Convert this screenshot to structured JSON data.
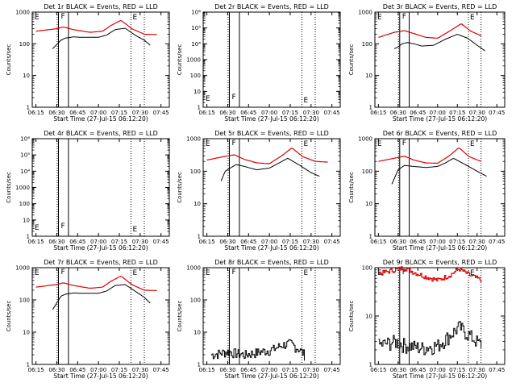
{
  "chart_data": [
    {
      "panel": "Det 1",
      "title": "Det 1r BLACK = Events, RED = LLD",
      "type": "line",
      "ylog": true,
      "ylim": [
        1,
        1000
      ],
      "yticks": [
        "1",
        "10",
        "100",
        "1000"
      ],
      "ylabel": "Counts/sec",
      "xticks": [
        "06:15",
        "06:30",
        "06:45",
        "07:00",
        "07:15",
        "07:30",
        "07:45"
      ],
      "xlabel": "Start Time (27-Jul-15 06:12:20)",
      "flags": [
        "E",
        "F",
        "E"
      ],
      "attenuator": true,
      "series": [
        {
          "name": "Events",
          "color": "#000000",
          "values": [],
          "x": []
        },
        {
          "name": "LLD",
          "color": "#dd0000",
          "values": [],
          "x": []
        }
      ],
      "red_curve": [
        [
          6.25,
          250
        ],
        [
          6.5,
          300
        ],
        [
          6.58,
          340
        ],
        [
          6.7,
          280
        ],
        [
          6.9,
          230
        ],
        [
          7.05,
          250
        ],
        [
          7.15,
          380
        ],
        [
          7.27,
          550
        ],
        [
          7.4,
          300
        ],
        [
          7.55,
          200
        ],
        [
          7.7,
          195
        ]
      ],
      "black_curve": [
        [
          6.45,
          70
        ],
        [
          6.55,
          130
        ],
        [
          6.6,
          150
        ],
        [
          6.7,
          165
        ],
        [
          6.8,
          160
        ],
        [
          7.0,
          160
        ],
        [
          7.1,
          190
        ],
        [
          7.2,
          280
        ],
        [
          7.32,
          310
        ],
        [
          7.45,
          180
        ],
        [
          7.55,
          130
        ],
        [
          7.62,
          90
        ]
      ]
    },
    {
      "panel": "Det 2",
      "title": "Det 2r BLACK = Events, RED = LLD",
      "type": "line",
      "ylog": true,
      "ylim": [
        1,
        1000000
      ],
      "yticks": [
        "1",
        "10",
        "100",
        "1000",
        "10⁴",
        "10⁵",
        "10⁶"
      ],
      "ylabel": "Counts/sec",
      "xticks": [
        "06:15",
        "06:30",
        "06:45",
        "07:00",
        "07:15",
        "07:30",
        "07:45"
      ],
      "xlabel": "Start Time (27-Jul-15 06:12:20)",
      "flags": [
        "E",
        "F",
        "E"
      ],
      "attenuator": false,
      "red_curve": [],
      "black_curve": []
    },
    {
      "panel": "Det 3",
      "title": "Det 3r BLACK = Events, RED = LLD",
      "type": "line",
      "ylog": true,
      "ylim": [
        1,
        1000
      ],
      "yticks": [
        "1",
        "10",
        "100",
        "1000"
      ],
      "ylabel": "Counts/sec",
      "xticks": [
        "06:15",
        "06:30",
        "06:45",
        "07:00",
        "07:15",
        "07:30",
        "07:45"
      ],
      "xlabel": "Start Time (27-Jul-15 06:12:20)",
      "flags": [
        "E",
        "F",
        "E"
      ],
      "attenuator": true,
      "red_curve": [
        [
          6.25,
          160
        ],
        [
          6.45,
          230
        ],
        [
          6.58,
          260
        ],
        [
          6.7,
          210
        ],
        [
          6.85,
          160
        ],
        [
          7.0,
          150
        ],
        [
          7.15,
          250
        ],
        [
          7.3,
          430
        ],
        [
          7.42,
          250
        ],
        [
          7.55,
          180
        ]
      ],
      "black_curve": [
        [
          6.45,
          70
        ],
        [
          6.5,
          80
        ],
        [
          6.55,
          100
        ],
        [
          6.62,
          110
        ],
        [
          6.7,
          100
        ],
        [
          6.8,
          85
        ],
        [
          6.95,
          90
        ],
        [
          7.1,
          140
        ],
        [
          7.25,
          200
        ],
        [
          7.38,
          150
        ],
        [
          7.5,
          90
        ],
        [
          7.6,
          60
        ]
      ]
    },
    {
      "panel": "Det 4",
      "title": "Det 4r BLACK = Events, RED = LLD",
      "type": "line",
      "ylog": true,
      "ylim": [
        1,
        1000000
      ],
      "yticks": [
        "1",
        "10",
        "100",
        "1000",
        "10⁴",
        "10⁵",
        "10⁶"
      ],
      "ylabel": "Counts/sec",
      "xticks": [
        "06:15",
        "06:30",
        "06:45",
        "07:00",
        "07:15",
        "07:30",
        "07:45"
      ],
      "xlabel": "Start Time (27-Jul-15 06:12:20)",
      "flags": [
        "E",
        "F",
        "E"
      ],
      "attenuator": false,
      "red_curve": [],
      "black_curve": []
    },
    {
      "panel": "Det 5",
      "title": "Det 5r BLACK = Events, RED = LLD",
      "type": "line",
      "ylog": true,
      "ylim": [
        1,
        1000
      ],
      "yticks": [
        "1",
        "10",
        "100",
        "1000"
      ],
      "ylabel": "Counts/sec",
      "xticks": [
        "06:15",
        "06:30",
        "06:45",
        "07:00",
        "07:15",
        "07:30",
        "07:45"
      ],
      "xlabel": "Start Time (27-Jul-15 06:12:20)",
      "flags": [
        "E",
        "F",
        "E"
      ],
      "attenuator": true,
      "red_curve": [
        [
          6.25,
          220
        ],
        [
          6.45,
          280
        ],
        [
          6.58,
          320
        ],
        [
          6.7,
          230
        ],
        [
          6.85,
          180
        ],
        [
          7.0,
          170
        ],
        [
          7.15,
          300
        ],
        [
          7.27,
          520
        ],
        [
          7.4,
          280
        ],
        [
          7.55,
          200
        ],
        [
          7.7,
          190
        ]
      ],
      "black_curve": [
        [
          6.42,
          50
        ],
        [
          6.47,
          100
        ],
        [
          6.52,
          120
        ],
        [
          6.6,
          160
        ],
        [
          6.7,
          140
        ],
        [
          6.85,
          110
        ],
        [
          7.0,
          125
        ],
        [
          7.1,
          170
        ],
        [
          7.22,
          250
        ],
        [
          7.35,
          160
        ],
        [
          7.5,
          90
        ],
        [
          7.6,
          70
        ]
      ]
    },
    {
      "panel": "Det 6",
      "title": "Det 6r BLACK = Events, RED = LLD",
      "type": "line",
      "ylog": true,
      "ylim": [
        1,
        1000
      ],
      "yticks": [
        "1",
        "10",
        "100",
        "1000"
      ],
      "ylabel": "Counts/sec",
      "xticks": [
        "06:15",
        "06:30",
        "06:45",
        "07:00",
        "07:15",
        "07:30",
        "07:45"
      ],
      "xlabel": "Start Time (27-Jul-15 06:12:20)",
      "flags": [
        "E",
        "F",
        "E"
      ],
      "attenuator": true,
      "red_curve": [
        [
          6.25,
          200
        ],
        [
          6.45,
          250
        ],
        [
          6.58,
          290
        ],
        [
          6.7,
          220
        ],
        [
          6.85,
          180
        ],
        [
          7.0,
          175
        ],
        [
          7.15,
          300
        ],
        [
          7.27,
          530
        ],
        [
          7.4,
          280
        ],
        [
          7.55,
          200
        ]
      ],
      "black_curve": [
        [
          6.42,
          40
        ],
        [
          6.5,
          110
        ],
        [
          6.58,
          150
        ],
        [
          6.7,
          140
        ],
        [
          6.85,
          130
        ],
        [
          7.0,
          140
        ],
        [
          7.1,
          180
        ],
        [
          7.2,
          250
        ],
        [
          7.35,
          160
        ],
        [
          7.5,
          100
        ],
        [
          7.62,
          70
        ]
      ]
    },
    {
      "panel": "Det 7",
      "title": "Det 7r BLACK = Events, RED = LLD",
      "type": "line",
      "ylog": true,
      "ylim": [
        1,
        1000
      ],
      "yticks": [
        "1",
        "10",
        "100",
        "1000"
      ],
      "ylabel": "Counts/sec",
      "xticks": [
        "06:15",
        "06:30",
        "06:45",
        "07:00",
        "07:15",
        "07:30",
        "07:45"
      ],
      "xlabel": "Start Time (27-Jul-15 06:12:20)",
      "flags": [
        "E",
        "F",
        "E"
      ],
      "attenuator": true,
      "red_curve": [
        [
          6.25,
          250
        ],
        [
          6.5,
          300
        ],
        [
          6.58,
          340
        ],
        [
          6.7,
          280
        ],
        [
          6.9,
          230
        ],
        [
          7.05,
          250
        ],
        [
          7.15,
          380
        ],
        [
          7.27,
          550
        ],
        [
          7.4,
          300
        ],
        [
          7.55,
          200
        ],
        [
          7.7,
          195
        ]
      ],
      "black_curve": [
        [
          6.45,
          50
        ],
        [
          6.55,
          130
        ],
        [
          6.6,
          150
        ],
        [
          6.7,
          165
        ],
        [
          6.8,
          160
        ],
        [
          7.0,
          160
        ],
        [
          7.1,
          190
        ],
        [
          7.2,
          280
        ],
        [
          7.32,
          300
        ],
        [
          7.45,
          180
        ],
        [
          7.55,
          120
        ],
        [
          7.62,
          80
        ]
      ]
    },
    {
      "panel": "Det 8",
      "title": "Det 8r BLACK = Events, RED = LLD",
      "type": "line",
      "ylog": true,
      "ylim": [
        1,
        1000
      ],
      "yticks": [
        "1",
        "10",
        "100",
        "1000"
      ],
      "ylabel": "Counts/sec",
      "xticks": [
        "06:15",
        "06:30",
        "06:45",
        "07:00",
        "07:15",
        "07:30",
        "07:45"
      ],
      "xlabel": "Start Time (27-Jul-15 06:12:20)",
      "flags": [
        "E",
        "F",
        "E"
      ],
      "attenuator": false,
      "noisy": true,
      "red_curve": [],
      "black_curve": [
        [
          6.3,
          2
        ],
        [
          6.5,
          2.5
        ],
        [
          6.7,
          2
        ],
        [
          6.9,
          2.5
        ],
        [
          7.05,
          3
        ],
        [
          7.15,
          4
        ],
        [
          7.25,
          4.5
        ],
        [
          7.35,
          3
        ],
        [
          7.42,
          2
        ]
      ]
    },
    {
      "panel": "Det 9",
      "title": "Det 9r BLACK = Events, RED = LLD",
      "type": "line",
      "ylog": true,
      "ylim": [
        1,
        100
      ],
      "yticks": [
        "1",
        "10",
        "100"
      ],
      "ylabel": "Counts/sec",
      "xticks": [
        "06:15",
        "06:30",
        "06:45",
        "07:00",
        "07:15",
        "07:30",
        "07:45"
      ],
      "xlabel": "Start Time (27-Jul-15 06:12:20)",
      "flags": [
        "E",
        "F",
        "E"
      ],
      "attenuator": true,
      "noisy": true,
      "red_curve": [
        [
          6.25,
          75
        ],
        [
          6.45,
          90
        ],
        [
          6.58,
          100
        ],
        [
          6.7,
          80
        ],
        [
          6.85,
          65
        ],
        [
          7.0,
          55
        ],
        [
          7.15,
          70
        ],
        [
          7.27,
          95
        ],
        [
          7.4,
          70
        ],
        [
          7.55,
          55
        ]
      ],
      "black_curve": [
        [
          6.25,
          2.5
        ],
        [
          6.45,
          3
        ],
        [
          6.6,
          2.5
        ],
        [
          6.8,
          2.2
        ],
        [
          7.0,
          2.5
        ],
        [
          7.15,
          4
        ],
        [
          7.27,
          6
        ],
        [
          7.4,
          4
        ],
        [
          7.55,
          2.5
        ]
      ]
    }
  ]
}
